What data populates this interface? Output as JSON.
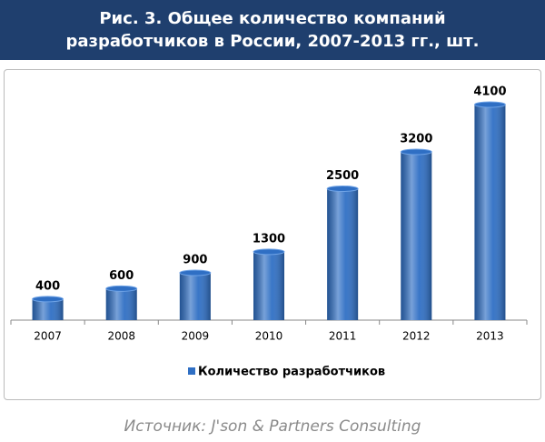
{
  "chart_data": {
    "type": "bar",
    "title": "Рис. 3. Общее количество компаний разработчиков в России, 2007-2013 гг., шт.",
    "categories": [
      "2007",
      "2008",
      "2009",
      "2010",
      "2011",
      "2012",
      "2013"
    ],
    "series": [
      {
        "name": "Количество разработчиков",
        "color": "#2f6fc4",
        "values": [
          400,
          600,
          900,
          1300,
          2500,
          3200,
          4100
        ]
      }
    ],
    "source": "Источник: J'son & Partners Consulting"
  }
}
